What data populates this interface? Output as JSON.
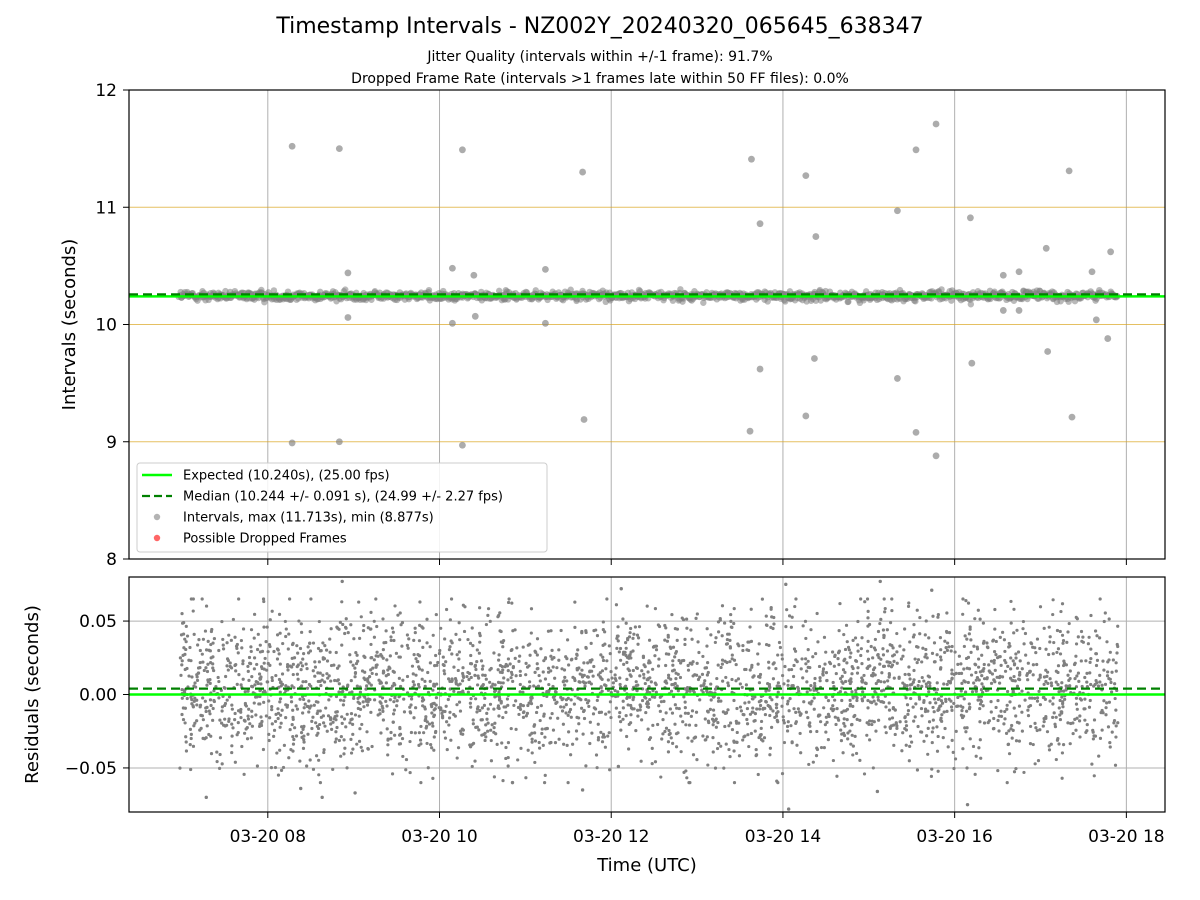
{
  "figure": {
    "title": "Timestamp Intervals - NZ002Y_20240320_065645_638347",
    "subtitle_1": "Jitter Quality (intervals within +/-1 frame): 91.7%",
    "subtitle_2": "Dropped Frame Rate (intervals >1 frames late within 50 FF files): 0.0%"
  },
  "colors": {
    "expected": "#00ff00",
    "median": "#008000",
    "intervals": "#808080",
    "dropped": "#ff0000",
    "threshold_lines": "#daa520",
    "grid": "#b0b0b0"
  },
  "chart_data": [
    {
      "type": "scatter",
      "name": "intervals-panel",
      "ylabel": "Intervals (seconds)",
      "xlim": [
        "2024-03-20 06:23",
        "2024-03-20 18:27"
      ],
      "ylim": [
        8,
        12
      ],
      "yticks": [
        8,
        9,
        10,
        11,
        12
      ],
      "grid": "vertical",
      "threshold_lines": [
        9,
        10,
        11
      ],
      "expected_value": 10.24,
      "median_value": 10.244,
      "legend_position": "lower-left",
      "legend": [
        {
          "key": "expected",
          "label": "Expected (10.240s), (25.00 fps)"
        },
        {
          "key": "median",
          "label": "Median (10.244 +/- 0.091 s), (24.99 +/- 2.27 fps)"
        },
        {
          "key": "intervals",
          "label": "Intervals, max (11.713s), min (8.877s)"
        },
        {
          "key": "dropped",
          "label": "Possible Dropped Frames"
        }
      ],
      "dense_band": {
        "x_start": "2024-03-20 06:58",
        "x_end": "2024-03-20 17:54",
        "y_min": 10.16,
        "y_max": 10.36
      },
      "outliers": [
        {
          "x": "2024-03-20 08:17",
          "y": 11.52
        },
        {
          "x": "2024-03-20 08:50",
          "y": 11.5
        },
        {
          "x": "2024-03-20 10:16",
          "y": 11.49
        },
        {
          "x": "2024-03-20 11:40",
          "y": 11.3
        },
        {
          "x": "2024-03-20 13:38",
          "y": 11.41
        },
        {
          "x": "2024-03-20 14:16",
          "y": 11.27
        },
        {
          "x": "2024-03-20 15:33",
          "y": 11.49
        },
        {
          "x": "2024-03-20 15:47",
          "y": 11.71
        },
        {
          "x": "2024-03-20 17:20",
          "y": 11.31
        },
        {
          "x": "2024-03-20 13:44",
          "y": 10.86
        },
        {
          "x": "2024-03-20 15:20",
          "y": 10.97
        },
        {
          "x": "2024-03-20 16:11",
          "y": 10.91
        },
        {
          "x": "2024-03-20 14:23",
          "y": 10.75
        },
        {
          "x": "2024-03-20 17:04",
          "y": 10.65
        },
        {
          "x": "2024-03-20 17:49",
          "y": 10.62
        },
        {
          "x": "2024-03-20 08:56",
          "y": 10.44
        },
        {
          "x": "2024-03-20 10:09",
          "y": 10.48
        },
        {
          "x": "2024-03-20 10:24",
          "y": 10.42
        },
        {
          "x": "2024-03-20 11:14",
          "y": 10.47
        },
        {
          "x": "2024-03-20 16:34",
          "y": 10.42
        },
        {
          "x": "2024-03-20 16:45",
          "y": 10.45
        },
        {
          "x": "2024-03-20 17:36",
          "y": 10.45
        },
        {
          "x": "2024-03-20 08:56",
          "y": 10.06
        },
        {
          "x": "2024-03-20 10:09",
          "y": 10.01
        },
        {
          "x": "2024-03-20 10:25",
          "y": 10.07
        },
        {
          "x": "2024-03-20 11:14",
          "y": 10.01
        },
        {
          "x": "2024-03-20 16:34",
          "y": 10.12
        },
        {
          "x": "2024-03-20 16:45",
          "y": 10.12
        },
        {
          "x": "2024-03-20 17:39",
          "y": 10.04
        },
        {
          "x": "2024-03-20 17:47",
          "y": 9.88
        },
        {
          "x": "2024-03-20 17:05",
          "y": 9.77
        },
        {
          "x": "2024-03-20 16:12",
          "y": 9.67
        },
        {
          "x": "2024-03-20 13:44",
          "y": 9.62
        },
        {
          "x": "2024-03-20 14:22",
          "y": 9.71
        },
        {
          "x": "2024-03-20 15:20",
          "y": 9.54
        },
        {
          "x": "2024-03-20 14:16",
          "y": 9.22
        },
        {
          "x": "2024-03-20 11:41",
          "y": 9.19
        },
        {
          "x": "2024-03-20 13:37",
          "y": 9.09
        },
        {
          "x": "2024-03-20 15:33",
          "y": 9.08
        },
        {
          "x": "2024-03-20 17:22",
          "y": 9.21
        },
        {
          "x": "2024-03-20 08:17",
          "y": 8.99
        },
        {
          "x": "2024-03-20 08:50",
          "y": 9.0
        },
        {
          "x": "2024-03-20 10:16",
          "y": 8.97
        },
        {
          "x": "2024-03-20 15:47",
          "y": 8.88
        }
      ]
    },
    {
      "type": "scatter",
      "name": "residuals-panel",
      "xlabel": "Time (UTC)",
      "ylabel": "Residuals (seconds)",
      "xlim": [
        "2024-03-20 06:23",
        "2024-03-20 18:27"
      ],
      "ylim": [
        -0.08,
        0.08
      ],
      "yticks": [
        -0.05,
        0.0,
        0.05
      ],
      "ytick_labels": [
        "−0.05",
        "0.00",
        "0.05"
      ],
      "xticks": [
        "2024-03-20 08:00",
        "2024-03-20 10:00",
        "2024-03-20 12:00",
        "2024-03-20 14:00",
        "2024-03-20 16:00",
        "2024-03-20 18:00"
      ],
      "xtick_labels": [
        "03-20 08",
        "03-20 10",
        "03-20 12",
        "03-20 14",
        "03-20 16",
        "03-20 18"
      ],
      "grid": "both",
      "expected_value": 0.0,
      "median_value": 0.004,
      "dense_band": {
        "x_start": "2024-03-20 06:58",
        "x_end": "2024-03-20 17:54",
        "y_center": 0.01,
        "y_spread": 0.025
      },
      "outliers": [
        {
          "x": "2024-03-20 07:17",
          "y": -0.07
        },
        {
          "x": "2024-03-20 08:23",
          "y": -0.064
        },
        {
          "x": "2024-03-20 08:38",
          "y": -0.07
        },
        {
          "x": "2024-03-20 09:01",
          "y": -0.067
        },
        {
          "x": "2024-03-20 10:51",
          "y": -0.06
        },
        {
          "x": "2024-03-20 11:40",
          "y": -0.065
        },
        {
          "x": "2024-03-20 12:05",
          "y": -0.049
        },
        {
          "x": "2024-03-20 14:04",
          "y": -0.078
        },
        {
          "x": "2024-03-20 15:06",
          "y": -0.066
        },
        {
          "x": "2024-03-20 16:09",
          "y": -0.075
        },
        {
          "x": "2024-03-20 08:52",
          "y": 0.077
        },
        {
          "x": "2024-03-20 14:02",
          "y": 0.075
        },
        {
          "x": "2024-03-20 15:08",
          "y": 0.077
        },
        {
          "x": "2024-03-20 12:07",
          "y": 0.072
        },
        {
          "x": "2024-03-20 15:44",
          "y": 0.071
        }
      ]
    }
  ]
}
